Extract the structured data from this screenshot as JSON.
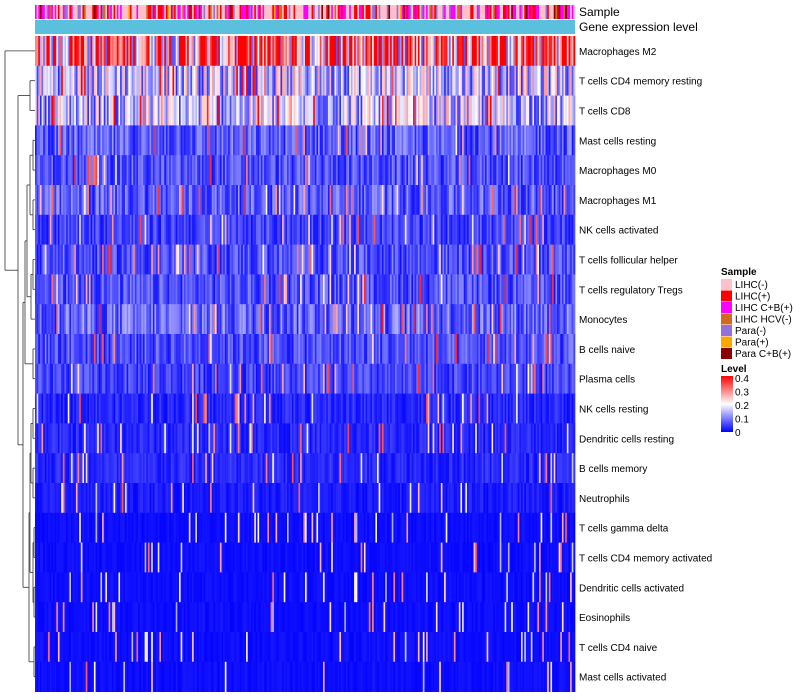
{
  "chart_data": {
    "type": "heatmap",
    "title": "",
    "annotation_tracks": [
      "Sample",
      "Gene expression level"
    ],
    "rows": [
      {
        "name": "Macrophages M2",
        "mean": 0.3
      },
      {
        "name": "T cells CD4 memory resting",
        "mean": 0.16
      },
      {
        "name": "T cells CD8",
        "mean": 0.15
      },
      {
        "name": "Mast cells resting",
        "mean": 0.07
      },
      {
        "name": "Macrophages M0",
        "mean": 0.06
      },
      {
        "name": "Macrophages M1",
        "mean": 0.07
      },
      {
        "name": "NK cells activated",
        "mean": 0.05
      },
      {
        "name": "T cells follicular helper",
        "mean": 0.06
      },
      {
        "name": "T cells regulatory  Tregs",
        "mean": 0.06
      },
      {
        "name": "Monocytes",
        "mean": 0.08
      },
      {
        "name": "B cells naive",
        "mean": 0.06
      },
      {
        "name": "Plasma cells",
        "mean": 0.05
      },
      {
        "name": "NK cells resting",
        "mean": 0.03
      },
      {
        "name": "Dendritic cells resting",
        "mean": 0.03
      },
      {
        "name": "B cells memory",
        "mean": 0.03
      },
      {
        "name": "Neutrophils",
        "mean": 0.02
      },
      {
        "name": "T cells gamma delta",
        "mean": 0.01
      },
      {
        "name": "T cells CD4 memory activated",
        "mean": 0.01
      },
      {
        "name": "Dendritic cells activated",
        "mean": 0.01
      },
      {
        "name": "Eosinophils",
        "mean": 0.01
      },
      {
        "name": "T cells CD4 naive",
        "mean": 0.01
      },
      {
        "name": "Mast cells activated",
        "mean": 0.01
      }
    ],
    "n_columns": 330,
    "value_range": [
      0,
      0.4
    ],
    "legend": {
      "sample_title": "Sample",
      "sample_items": [
        {
          "label": "LIHC(-)",
          "color": "#ffc0cb"
        },
        {
          "label": "LIHC(+)",
          "color": "#ff0000"
        },
        {
          "label": "LIHC C+B(+)",
          "color": "#ff00ff"
        },
        {
          "label": "LIHC HCV(-)",
          "color": "#d2691e"
        },
        {
          "label": "Para(-)",
          "color": "#9370db"
        },
        {
          "label": "Para(+)",
          "color": "#ffa500"
        },
        {
          "label": "Para C+B(+)",
          "color": "#8b0000"
        }
      ],
      "level_title": "Level",
      "level_ticks": [
        "0.4",
        "0.3",
        "0.2",
        "0.1",
        "0"
      ],
      "level_colors": [
        "#0000ff",
        "#ffffff",
        "#ff0000"
      ]
    },
    "gene_expression_color": "#5bc0de",
    "legend_position": "right"
  }
}
